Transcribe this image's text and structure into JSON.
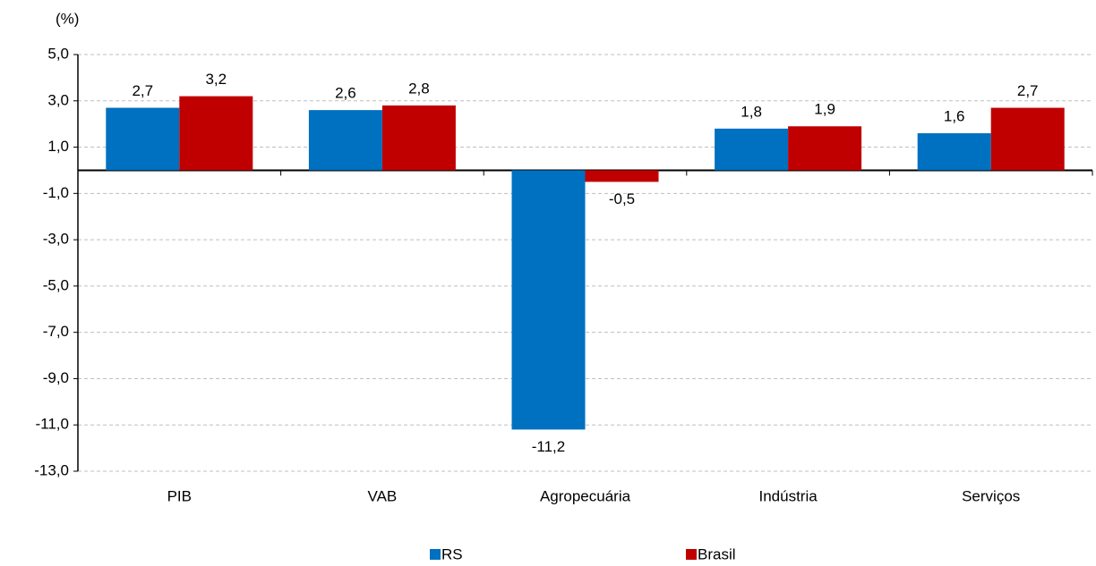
{
  "chart_data": {
    "type": "bar",
    "y_label": "(%)",
    "categories": [
      "PIB",
      "VAB",
      "Agropecuária",
      "Indústria",
      "Serviços"
    ],
    "series": [
      {
        "name": "RS",
        "color": "#0070c0",
        "values": [
          2.7,
          2.6,
          -11.2,
          1.8,
          1.6
        ],
        "value_labels": [
          "2,7",
          "2,6",
          "-11,2",
          "1,8",
          "1,6"
        ]
      },
      {
        "name": "Brasil",
        "color": "#c00000",
        "values": [
          3.2,
          2.8,
          -0.5,
          1.9,
          2.7
        ],
        "value_labels": [
          "3,2",
          "2,8",
          "-0,5",
          "1,9",
          "2,7"
        ]
      }
    ],
    "ylim": [
      -13,
      5
    ],
    "yticks": [
      {
        "value": -13,
        "label": "-13,0"
      },
      {
        "value": -11,
        "label": "-11,0"
      },
      {
        "value": -9,
        "label": "-9,0"
      },
      {
        "value": -7,
        "label": "-7,0"
      },
      {
        "value": -5,
        "label": "-5,0"
      },
      {
        "value": -3,
        "label": "-3,0"
      },
      {
        "value": -1,
        "label": "-1,0"
      },
      {
        "value": 1,
        "label": "1,0"
      },
      {
        "value": 3,
        "label": "3,0"
      },
      {
        "value": 5,
        "label": "5,0"
      }
    ],
    "grid": true,
    "legend": "bottom"
  }
}
